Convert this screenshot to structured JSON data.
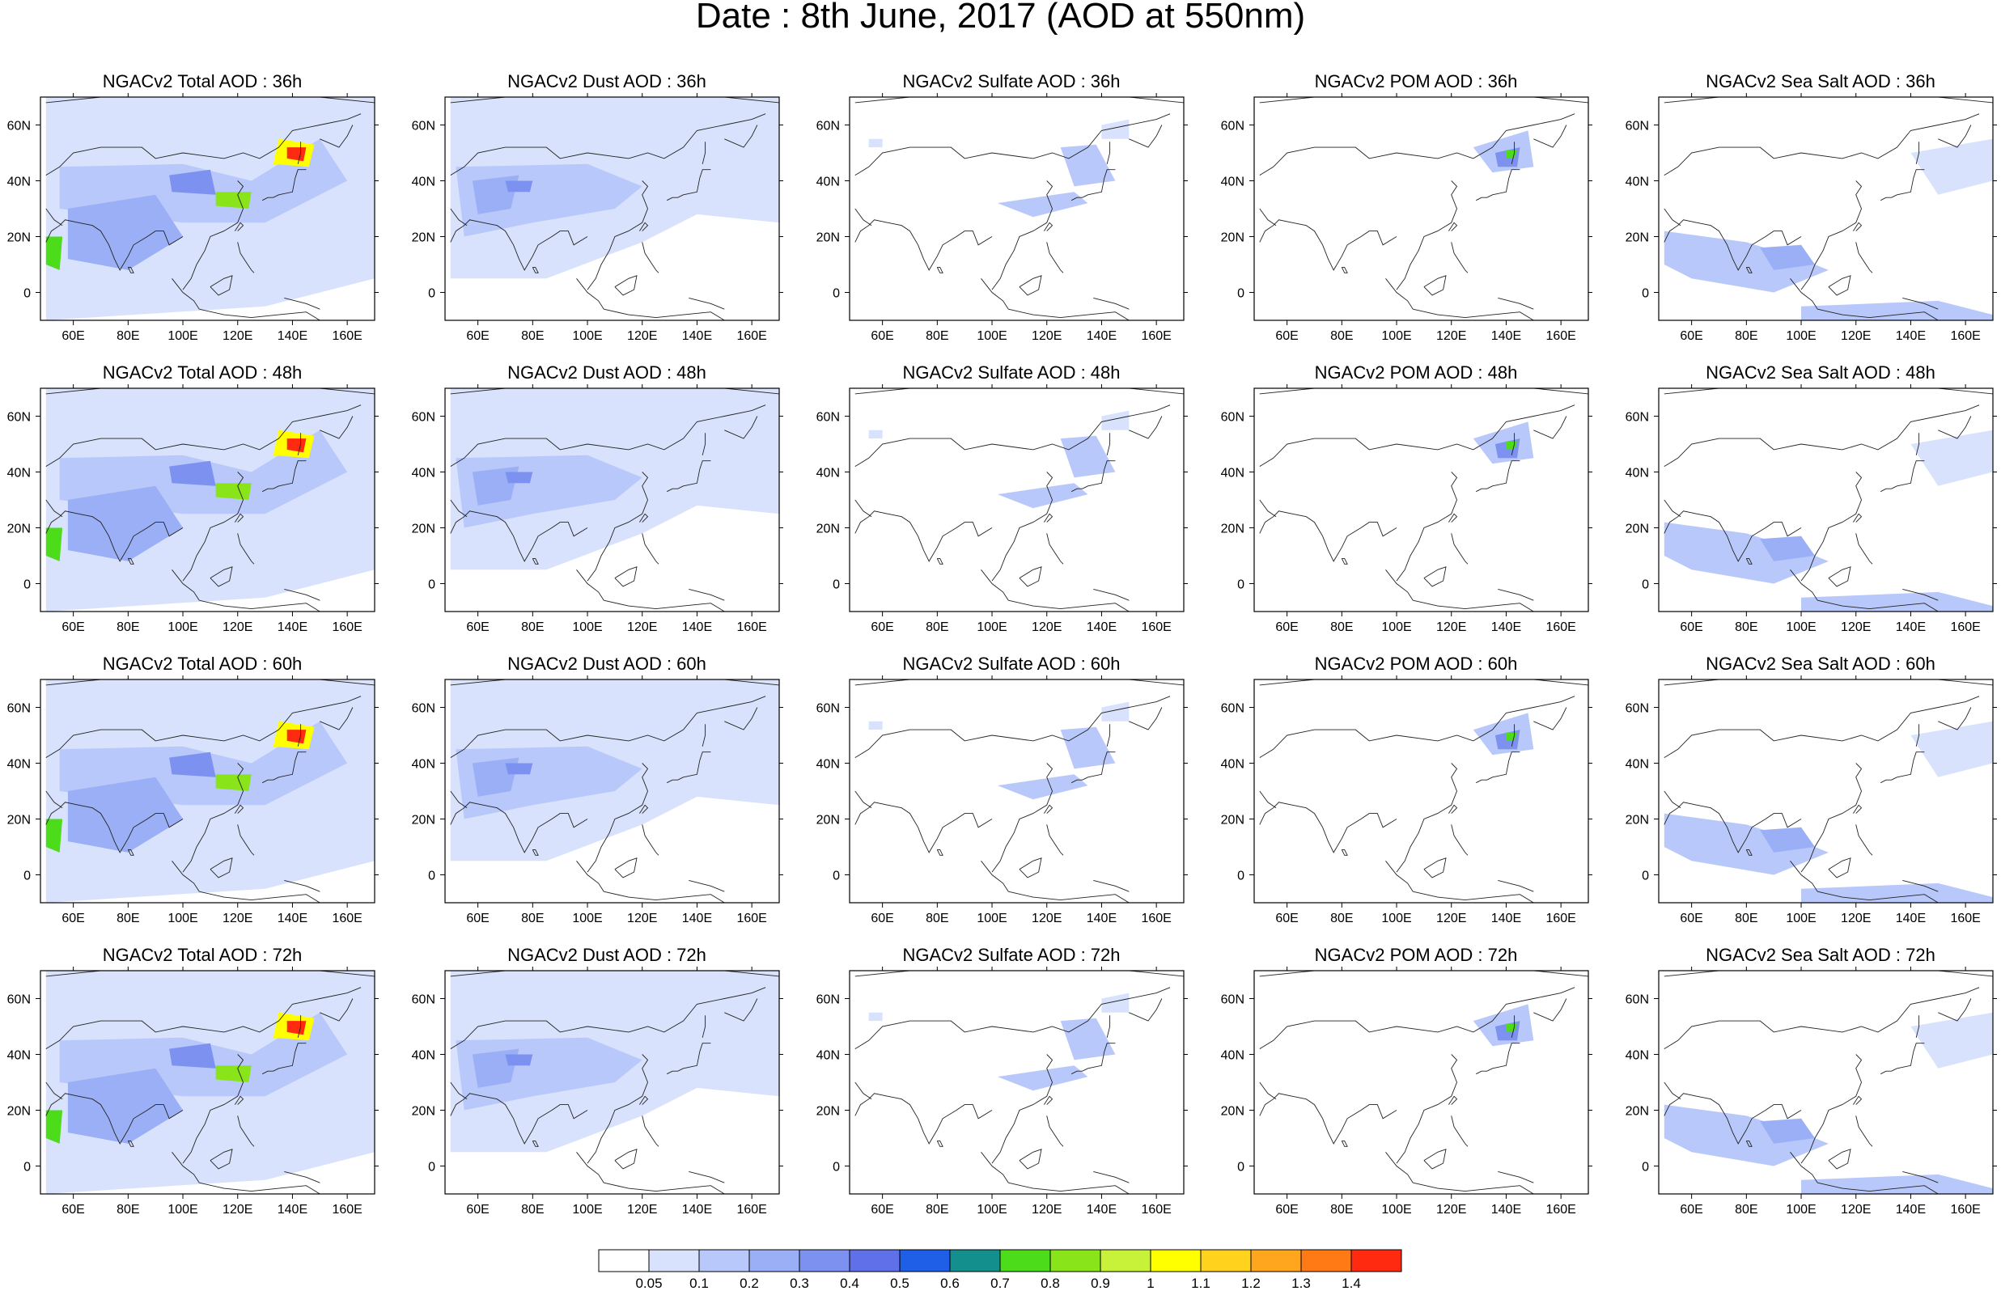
{
  "title": "Date : 8th June, 2017 (AOD at 550nm)",
  "map": {
    "region": "Asia",
    "lon_range": [
      48,
      170
    ],
    "lat_range": [
      -10,
      70
    ],
    "lon_ticks": [
      "60E",
      "80E",
      "100E",
      "120E",
      "140E",
      "160E"
    ],
    "lat_ticks": [
      "60N",
      "40N",
      "20N",
      "0"
    ]
  },
  "panels": [
    {
      "title": "NGACv2 Total AOD : 36h",
      "species": "total",
      "hour": 36
    },
    {
      "title": "NGACv2 Dust AOD : 36h",
      "species": "dust",
      "hour": 36
    },
    {
      "title": "NGACv2 Sulfate AOD : 36h",
      "species": "sulfate",
      "hour": 36
    },
    {
      "title": "NGACv2 POM AOD : 36h",
      "species": "pom",
      "hour": 36
    },
    {
      "title": "NGACv2 Sea Salt AOD : 36h",
      "species": "seasalt",
      "hour": 36
    },
    {
      "title": "NGACv2 Total AOD : 48h",
      "species": "total",
      "hour": 48
    },
    {
      "title": "NGACv2 Dust AOD : 48h",
      "species": "dust",
      "hour": 48
    },
    {
      "title": "NGACv2 Sulfate AOD : 48h",
      "species": "sulfate",
      "hour": 48
    },
    {
      "title": "NGACv2 POM AOD : 48h",
      "species": "pom",
      "hour": 48
    },
    {
      "title": "NGACv2 Sea Salt AOD : 48h",
      "species": "seasalt",
      "hour": 48
    },
    {
      "title": "NGACv2 Total AOD : 60h",
      "species": "total",
      "hour": 60
    },
    {
      "title": "NGACv2 Dust AOD : 60h",
      "species": "dust",
      "hour": 60
    },
    {
      "title": "NGACv2 Sulfate AOD : 60h",
      "species": "sulfate",
      "hour": 60
    },
    {
      "title": "NGACv2 POM AOD : 60h",
      "species": "pom",
      "hour": 60
    },
    {
      "title": "NGACv2 Sea Salt AOD : 60h",
      "species": "seasalt",
      "hour": 60
    },
    {
      "title": "NGACv2 Total AOD : 72h",
      "species": "total",
      "hour": 72
    },
    {
      "title": "NGACv2 Dust AOD : 72h",
      "species": "dust",
      "hour": 72
    },
    {
      "title": "NGACv2 Sulfate AOD : 72h",
      "species": "sulfate",
      "hour": 72
    },
    {
      "title": "NGACv2 POM AOD : 72h",
      "species": "pom",
      "hour": 72
    },
    {
      "title": "NGACv2 Sea Salt  AOD : 72h",
      "species": "seasalt",
      "hour": 72
    }
  ],
  "colorbar": {
    "labels": [
      "0.05",
      "0.1",
      "0.2",
      "0.3",
      "0.4",
      "0.5",
      "0.6",
      "0.7",
      "0.8",
      "0.9",
      "1",
      "1.1",
      "1.2",
      "1.3",
      "1.4"
    ],
    "colors": [
      "#ffffff",
      "#d8e2fc",
      "#b9c8fa",
      "#9aaff6",
      "#7d92f0",
      "#5f70e8",
      "#1f5ee6",
      "#13908e",
      "#4ddc1a",
      "#8ae41a",
      "#c8f23a",
      "#ffff00",
      "#ffd21e",
      "#ffa61e",
      "#ff7a14",
      "#ff2a10"
    ]
  },
  "features": {
    "total": [
      [
        [
          50,
          70
        ],
        [
          170,
          70
        ],
        [
          170,
          5
        ],
        [
          130,
          -5
        ],
        [
          50,
          -10
        ],
        [
          50,
          70
        ]
      ],
      [
        [
          55,
          45
        ],
        [
          100,
          46
        ],
        [
          125,
          40
        ],
        [
          150,
          55
        ],
        [
          160,
          40
        ],
        [
          130,
          25
        ],
        [
          100,
          25
        ],
        [
          55,
          30
        ],
        [
          55,
          45
        ]
      ],
      [
        [
          58,
          30
        ],
        [
          90,
          35
        ],
        [
          100,
          20
        ],
        [
          80,
          8
        ],
        [
          58,
          12
        ],
        [
          58,
          30
        ]
      ],
      [
        [
          95,
          42
        ],
        [
          110,
          44
        ],
        [
          112,
          35
        ],
        [
          96,
          36
        ],
        [
          95,
          42
        ]
      ],
      [
        [
          112,
          36
        ],
        [
          125,
          36
        ],
        [
          124,
          30
        ],
        [
          112,
          31
        ],
        [
          112,
          36
        ]
      ],
      [
        [
          135,
          55
        ],
        [
          148,
          53
        ],
        [
          146,
          45
        ],
        [
          133,
          46
        ],
        [
          135,
          55
        ]
      ],
      [
        [
          138,
          52
        ],
        [
          145,
          52
        ],
        [
          144,
          47
        ],
        [
          138,
          48
        ],
        [
          138,
          52
        ]
      ],
      [
        [
          50,
          20
        ],
        [
          56,
          20
        ],
        [
          55,
          8
        ],
        [
          50,
          10
        ],
        [
          50,
          20
        ]
      ]
    ],
    "dust": [
      [
        [
          50,
          70
        ],
        [
          170,
          70
        ],
        [
          170,
          25
        ],
        [
          140,
          28
        ],
        [
          120,
          18
        ],
        [
          85,
          5
        ],
        [
          50,
          5
        ],
        [
          50,
          70
        ]
      ],
      [
        [
          52,
          45
        ],
        [
          100,
          46
        ],
        [
          120,
          38
        ],
        [
          110,
          30
        ],
        [
          80,
          25
        ],
        [
          55,
          20
        ],
        [
          52,
          45
        ]
      ],
      [
        [
          58,
          40
        ],
        [
          75,
          42
        ],
        [
          72,
          30
        ],
        [
          60,
          28
        ],
        [
          58,
          40
        ]
      ],
      [
        [
          70,
          40
        ],
        [
          80,
          40
        ],
        [
          79,
          36
        ],
        [
          71,
          36
        ],
        [
          70,
          40
        ]
      ]
    ],
    "sulfate": [
      [
        [
          102,
          32
        ],
        [
          130,
          36
        ],
        [
          135,
          32
        ],
        [
          115,
          27
        ],
        [
          102,
          32
        ]
      ],
      [
        [
          125,
          52
        ],
        [
          138,
          53
        ],
        [
          145,
          40
        ],
        [
          130,
          38
        ],
        [
          125,
          52
        ]
      ],
      [
        [
          55,
          55
        ],
        [
          60,
          55
        ],
        [
          60,
          52
        ],
        [
          55,
          52
        ],
        [
          55,
          55
        ]
      ],
      [
        [
          140,
          60
        ],
        [
          150,
          62
        ],
        [
          150,
          55
        ],
        [
          140,
          55
        ],
        [
          140,
          60
        ]
      ]
    ],
    "pom": [
      [
        [
          128,
          52
        ],
        [
          148,
          58
        ],
        [
          150,
          45
        ],
        [
          135,
          43
        ],
        [
          128,
          52
        ]
      ],
      [
        [
          136,
          50
        ],
        [
          145,
          52
        ],
        [
          144,
          45
        ],
        [
          137,
          45
        ],
        [
          136,
          50
        ]
      ],
      [
        [
          140,
          51
        ],
        [
          144,
          51
        ],
        [
          143,
          48
        ],
        [
          140,
          48
        ],
        [
          140,
          51
        ]
      ]
    ],
    "seasalt": [
      [
        [
          50,
          22
        ],
        [
          80,
          18
        ],
        [
          100,
          12
        ],
        [
          110,
          8
        ],
        [
          90,
          0
        ],
        [
          60,
          5
        ],
        [
          50,
          10
        ],
        [
          50,
          22
        ]
      ],
      [
        [
          85,
          16
        ],
        [
          100,
          17
        ],
        [
          105,
          10
        ],
        [
          90,
          8
        ],
        [
          85,
          16
        ]
      ],
      [
        [
          140,
          50
        ],
        [
          170,
          55
        ],
        [
          170,
          40
        ],
        [
          150,
          35
        ],
        [
          140,
          50
        ]
      ],
      [
        [
          100,
          -5
        ],
        [
          150,
          -3
        ],
        [
          170,
          -8
        ],
        [
          170,
          -10
        ],
        [
          100,
          -10
        ],
        [
          100,
          -5
        ]
      ]
    ]
  },
  "coastline": [
    [
      [
        50,
        68
      ],
      [
        70,
        70
      ],
      [
        90,
        72
      ],
      [
        110,
        74
      ],
      [
        130,
        71
      ],
      [
        150,
        70
      ],
      [
        170,
        68
      ]
    ],
    [
      [
        50,
        42
      ],
      [
        55,
        45
      ],
      [
        60,
        50
      ],
      [
        70,
        52
      ],
      [
        85,
        52
      ],
      [
        90,
        48
      ],
      [
        100,
        50
      ],
      [
        115,
        48
      ],
      [
        122,
        50
      ],
      [
        128,
        48
      ],
      [
        135,
        52
      ],
      [
        140,
        58
      ],
      [
        150,
        60
      ],
      [
        160,
        62
      ],
      [
        165,
        64
      ]
    ],
    [
      [
        120,
        40
      ],
      [
        122,
        38
      ],
      [
        120,
        35
      ],
      [
        122,
        30
      ],
      [
        120,
        25
      ],
      [
        115,
        22
      ],
      [
        110,
        20
      ],
      [
        108,
        15
      ],
      [
        105,
        10
      ],
      [
        103,
        5
      ],
      [
        100,
        1
      ]
    ],
    [
      [
        100,
        20
      ],
      [
        95,
        17
      ],
      [
        93,
        22
      ],
      [
        90,
        22
      ],
      [
        87,
        20
      ],
      [
        82,
        17
      ],
      [
        80,
        13
      ],
      [
        77,
        8
      ],
      [
        75,
        12
      ],
      [
        73,
        17
      ],
      [
        70,
        22
      ],
      [
        67,
        24
      ],
      [
        62,
        25
      ],
      [
        57,
        26
      ],
      [
        55,
        24
      ],
      [
        52,
        22
      ],
      [
        50,
        18
      ]
    ],
    [
      [
        50,
        30
      ],
      [
        53,
        26
      ],
      [
        56,
        24
      ]
    ],
    [
      [
        135,
        35
      ],
      [
        140,
        36
      ],
      [
        141,
        41
      ],
      [
        142,
        44
      ],
      [
        145,
        44
      ]
    ],
    [
      [
        129,
        33
      ],
      [
        131,
        34
      ],
      [
        133,
        34
      ],
      [
        135,
        35
      ]
    ],
    [
      [
        142,
        46
      ],
      [
        143,
        50
      ],
      [
        143,
        54
      ]
    ],
    [
      [
        150,
        55
      ],
      [
        157,
        52
      ],
      [
        160,
        56
      ],
      [
        162,
        60
      ]
    ],
    [
      [
        96,
        5
      ],
      [
        100,
        0
      ],
      [
        104,
        -3
      ],
      [
        106,
        -6
      ]
    ],
    [
      [
        106,
        -6
      ],
      [
        115,
        -8
      ],
      [
        125,
        -9
      ],
      [
        135,
        -8
      ],
      [
        145,
        -7
      ],
      [
        150,
        -10
      ]
    ],
    [
      [
        110,
        2
      ],
      [
        115,
        5
      ],
      [
        118,
        6
      ],
      [
        117,
        1
      ],
      [
        113,
        -1
      ],
      [
        110,
        2
      ]
    ],
    [
      [
        120,
        18
      ],
      [
        121,
        14
      ],
      [
        123,
        11
      ],
      [
        125,
        8
      ],
      [
        126,
        7
      ]
    ],
    [
      [
        80,
        9
      ],
      [
        81,
        7
      ],
      [
        82,
        7
      ],
      [
        81,
        9
      ],
      [
        80,
        9
      ]
    ],
    [
      [
        119,
        22
      ],
      [
        121,
        25
      ],
      [
        122,
        24
      ],
      [
        120,
        22
      ]
    ],
    [
      [
        137,
        -2
      ],
      [
        145,
        -4
      ],
      [
        150,
        -6
      ]
    ]
  ]
}
